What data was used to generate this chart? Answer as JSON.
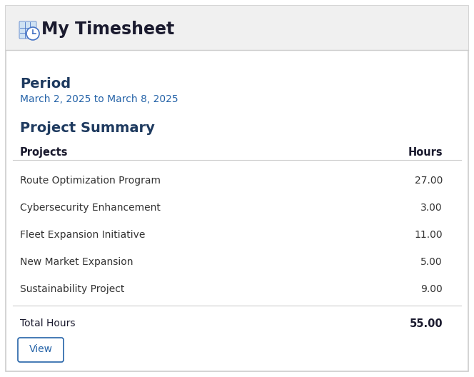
{
  "title": "My Timesheet",
  "period_label": "Period",
  "period_value": "March 2, 2025 to March 8, 2025",
  "summary_label": "Project Summary",
  "col_projects": "Projects",
  "col_hours": "Hours",
  "projects": [
    {
      "name": "Route Optimization Program",
      "hours": "27.00"
    },
    {
      "name": "Cybersecurity Enhancement",
      "hours": "3.00"
    },
    {
      "name": "Fleet Expansion Initiative",
      "hours": "11.00"
    },
    {
      "name": "New Market Expansion",
      "hours": "5.00"
    },
    {
      "name": "Sustainability Project",
      "hours": "9.00"
    }
  ],
  "total_label": "Total Hours",
  "total_hours": "55.00",
  "view_button_label": "View",
  "bg_header": "#f0f0f0",
  "bg_body": "#ffffff",
  "border_color": "#cccccc",
  "header_title_color": "#1a1a2e",
  "section_heading_color": "#1e3a5f",
  "period_text_color": "#2563a8",
  "table_header_color": "#1a1a2e",
  "row_text_color": "#333333",
  "total_row_color": "#1a1a2e",
  "button_text_color": "#2563a8",
  "button_border_color": "#2563a8",
  "separator_color": "#cccccc",
  "fig_width": 6.64,
  "fig_height": 5.28
}
